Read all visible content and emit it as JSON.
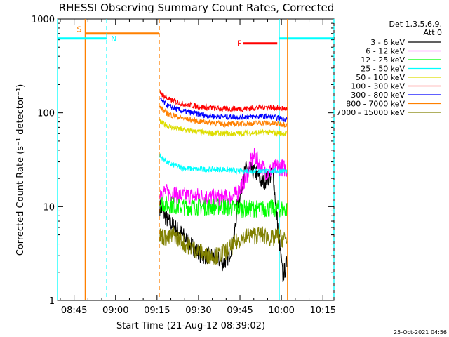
{
  "chart_data": {
    "type": "line",
    "title": "RHESSI Observing Summary Count Rates, Corrected",
    "xlabel": "Start Time (21-Aug-12 08:39:02)",
    "ylabel": "Corrected Count Rate (s⁻¹ detector⁻¹)",
    "y_scale": "log",
    "ylim": [
      1,
      1000
    ],
    "xlim_minutes_after_0839": [
      0,
      100
    ],
    "x_ticks": [
      {
        "label": "08:45",
        "t": 6
      },
      {
        "label": "09:00",
        "t": 21
      },
      {
        "label": "09:15",
        "t": 36
      },
      {
        "label": "09:30",
        "t": 51
      },
      {
        "label": "09:45",
        "t": 66
      },
      {
        "label": "10:00",
        "t": 81
      },
      {
        "label": "10:15",
        "t": 96
      }
    ],
    "y_ticks": [
      {
        "label": "1",
        "v": 1
      },
      {
        "label": "10",
        "v": 10
      },
      {
        "label": "100",
        "v": 100
      },
      {
        "label": "1000",
        "v": 1000
      }
    ],
    "legend": {
      "placement": "right",
      "header": [
        "Det 1,3,5,6,9,",
        "Att 0"
      ]
    },
    "series": [
      {
        "name": "3 - 6 keV",
        "color": "#000000",
        "x": [
          37,
          40,
          44,
          48,
          52,
          56,
          60,
          62,
          64,
          65,
          68,
          72,
          74,
          76,
          78,
          80,
          81.5,
          83
        ],
        "y": [
          10,
          7,
          5.5,
          4,
          3,
          3,
          2.5,
          3,
          5,
          10,
          25,
          23,
          18,
          20,
          22,
          5,
          1.8,
          2.5
        ]
      },
      {
        "name": "6 - 12 keV",
        "color": "#ff00ff",
        "x": [
          37,
          40,
          45,
          50,
          55,
          60,
          63,
          65,
          68,
          70,
          71.5,
          73,
          76,
          78,
          80,
          83
        ],
        "y": [
          15,
          14,
          13,
          13,
          12.5,
          12.5,
          12.5,
          14,
          20,
          30,
          35,
          28,
          23,
          25,
          27,
          25
        ]
      },
      {
        "name": "12 - 25 keV",
        "color": "#00ff00",
        "x": [
          37,
          40,
          45,
          50,
          55,
          60,
          65,
          70,
          75,
          80,
          83
        ],
        "y": [
          11,
          10.5,
          10,
          10,
          10,
          10,
          9.5,
          9.5,
          9.5,
          9.5,
          9.5
        ]
      },
      {
        "name": "25 - 50 keV",
        "color": "#00ffff",
        "x": [
          37,
          40,
          45,
          50,
          55,
          60,
          65,
          70,
          75,
          80,
          83
        ],
        "y": [
          35,
          29,
          26,
          25,
          25,
          25,
          24,
          24,
          24,
          24,
          24
        ]
      },
      {
        "name": "50 - 100 keV",
        "color": "#dddd00",
        "x": [
          37,
          40,
          45,
          50,
          55,
          60,
          65,
          70,
          75,
          80,
          83
        ],
        "y": [
          80,
          72,
          66,
          63,
          61,
          60,
          60,
          61,
          62,
          61,
          60
        ]
      },
      {
        "name": "100 - 300 keV",
        "color": "#ff0000",
        "x": [
          37,
          40,
          45,
          50,
          55,
          60,
          65,
          70,
          75,
          80,
          83
        ],
        "y": [
          165,
          140,
          125,
          118,
          113,
          110,
          110,
          112,
          115,
          112,
          110
        ]
      },
      {
        "name": "300 - 800 keV",
        "color": "#0000ff",
        "x": [
          37,
          40,
          45,
          50,
          55,
          60,
          65,
          70,
          75,
          80,
          83
        ],
        "y": [
          140,
          118,
          105,
          98,
          93,
          91,
          90,
          91,
          92,
          88,
          85
        ]
      },
      {
        "name": "800 - 7000 keV",
        "color": "#ff8000",
        "x": [
          37,
          40,
          45,
          50,
          55,
          60,
          65,
          70,
          75,
          80,
          83
        ],
        "y": [
          115,
          97,
          88,
          82,
          79,
          76,
          76,
          77,
          78,
          76,
          75
        ]
      },
      {
        "name": "7000 - 15000 keV",
        "color": "#808000",
        "x": [
          37,
          40,
          42,
          46,
          50,
          54,
          58,
          62,
          64,
          66,
          70,
          74,
          78,
          80,
          81.5,
          83
        ],
        "y": [
          5,
          4.5,
          5,
          4,
          3.5,
          3,
          3,
          3.5,
          4,
          4.5,
          5,
          5,
          4.5,
          5,
          4.5,
          4.5
        ]
      }
    ],
    "annotations": [
      {
        "label": "S",
        "color": "#ff8000",
        "x_start": 10,
        "x_end": 36.8,
        "level": 700,
        "boundary_style": "solid-start dashed-end"
      },
      {
        "label": "N",
        "color": "#00ffff",
        "x_start": 0,
        "x_end": 17.8,
        "level": 620,
        "boundary_style": "solid-start dashed-end"
      },
      {
        "label": "F",
        "color": "#ff0000",
        "x_start": 67,
        "x_end": 79.5,
        "level": 550,
        "boundary_style": "none"
      },
      {
        "label": "",
        "color": "#00ffff",
        "x_start": 80.2,
        "x_end": 100,
        "level": 620,
        "boundary_style": "solid-start dashed-end"
      },
      {
        "label": "",
        "color": "#ff8000",
        "x_start": 83.2,
        "x_end": 100,
        "level": null,
        "boundary_style": "solid-start"
      }
    ],
    "footer": "25-Oct-2021 04:56"
  }
}
